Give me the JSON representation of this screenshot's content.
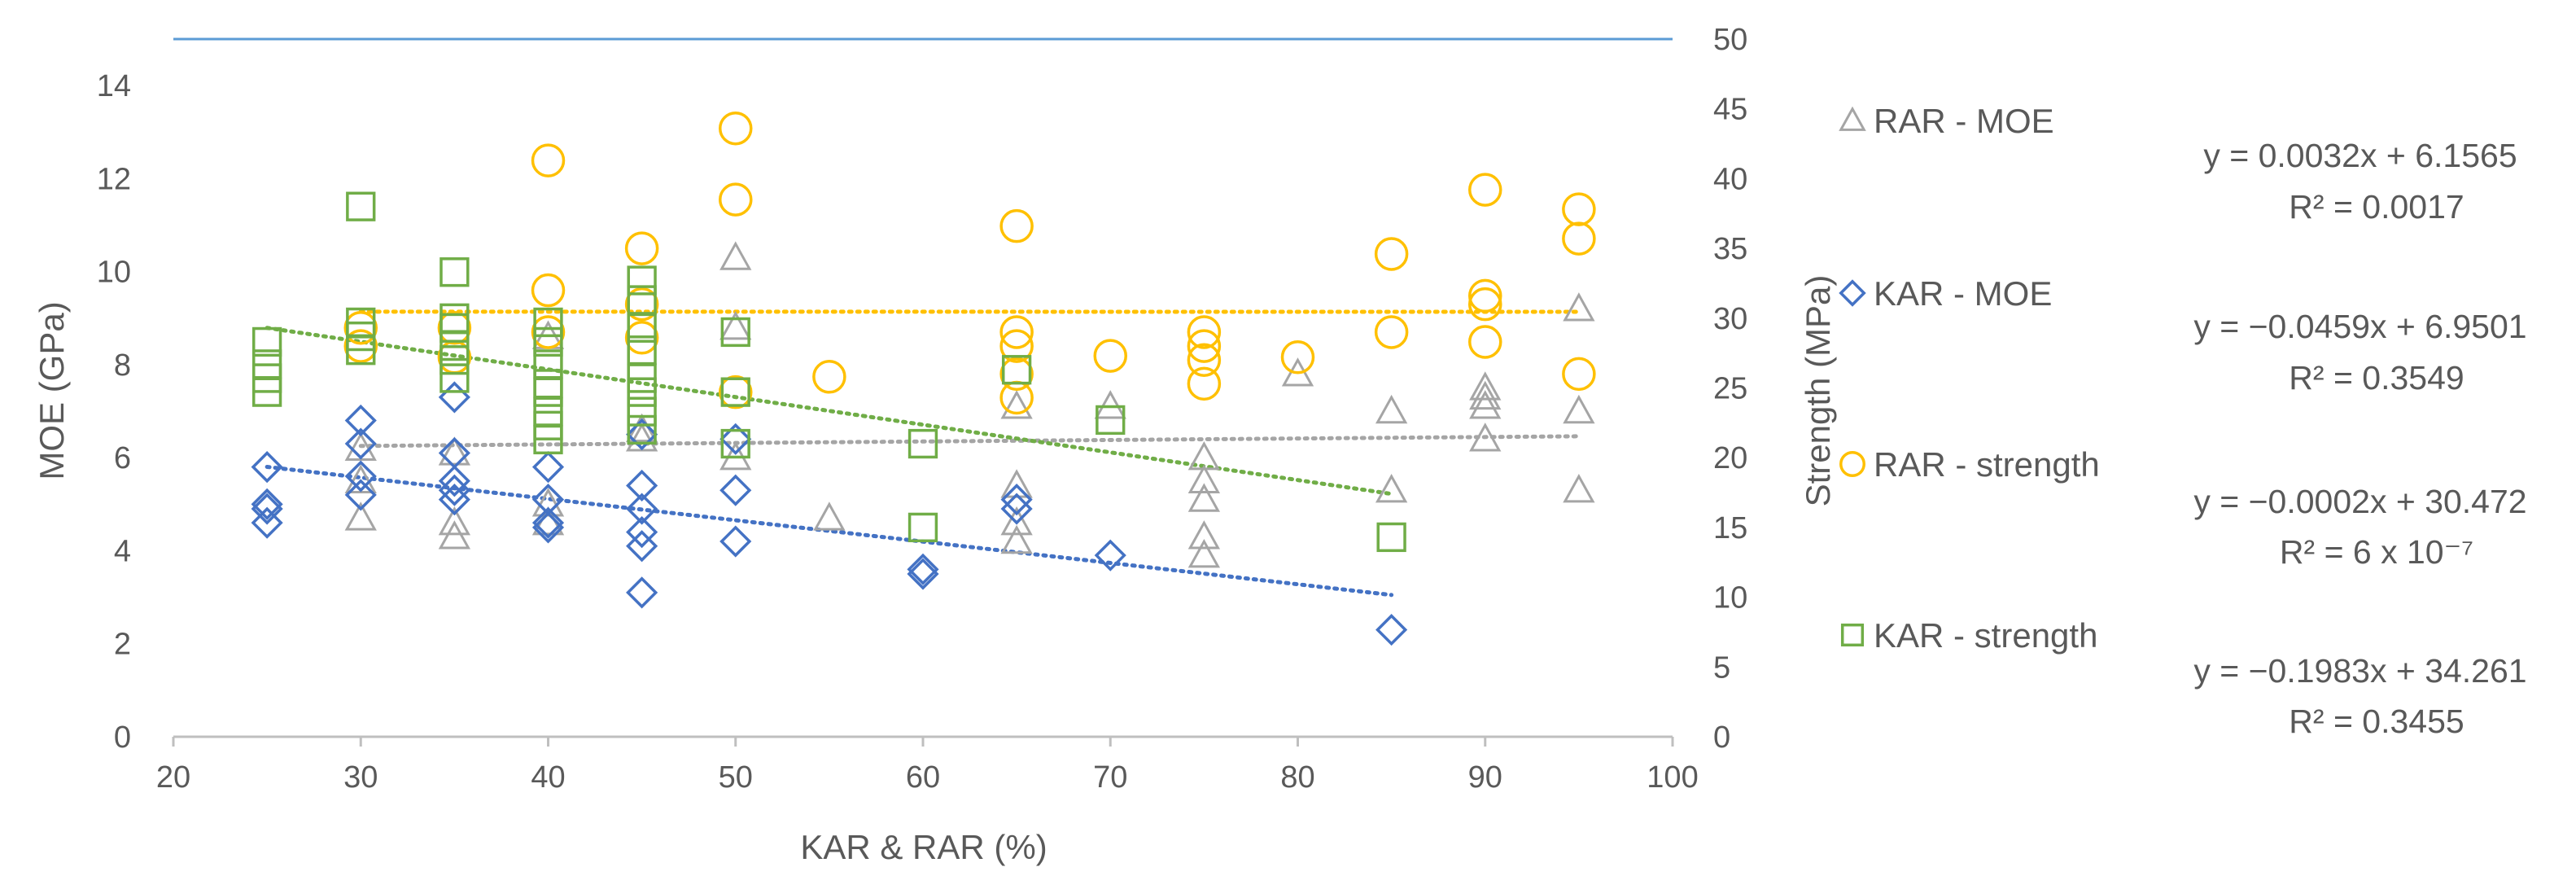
{
  "chart_data": {
    "type": "scatter",
    "title": "",
    "xlabel": "KAR & RAR (%)",
    "ylabel": "MOE (GPa)",
    "y2label": "Strength (MPa)",
    "xlim": [
      20,
      100
    ],
    "ylim": [
      0,
      15
    ],
    "y2lim": [
      0,
      50
    ],
    "x_ticks": [
      20,
      30,
      40,
      50,
      60,
      70,
      80,
      90,
      100
    ],
    "y_ticks": [
      0,
      2,
      4,
      6,
      8,
      10,
      12,
      14
    ],
    "y2_ticks": [
      0,
      5,
      10,
      15,
      20,
      25,
      30,
      35,
      40,
      45,
      50
    ],
    "grid": false,
    "legend_position": "right",
    "series": [
      {
        "name": "RAR - MOE",
        "axis": "left",
        "marker": "triangle",
        "color": "#a5a5a5",
        "points": [
          [
            30,
            4.7
          ],
          [
            30,
            5.5
          ],
          [
            30,
            6.2
          ],
          [
            35,
            4.3
          ],
          [
            35,
            4.6
          ],
          [
            35,
            6.1
          ],
          [
            40,
            4.6
          ],
          [
            40,
            5.0
          ],
          [
            40,
            8.6
          ],
          [
            45,
            6.4
          ],
          [
            45,
            6.6
          ],
          [
            50,
            6.0
          ],
          [
            50,
            10.3
          ],
          [
            50,
            8.8
          ],
          [
            55,
            4.7
          ],
          [
            65,
            4.2
          ],
          [
            65,
            4.6
          ],
          [
            65,
            5.4
          ],
          [
            65,
            7.1
          ],
          [
            70,
            7.1
          ],
          [
            75,
            3.9
          ],
          [
            75,
            4.3
          ],
          [
            75,
            5.1
          ],
          [
            75,
            5.5
          ],
          [
            75,
            6.0
          ],
          [
            80,
            7.8
          ],
          [
            85,
            5.3
          ],
          [
            85,
            7.0
          ],
          [
            90,
            6.4
          ],
          [
            90,
            7.1
          ],
          [
            90,
            7.3
          ],
          [
            90,
            7.5
          ],
          [
            95,
            5.3
          ],
          [
            95,
            7.0
          ],
          [
            95,
            9.2
          ]
        ],
        "trendline": {
          "slope": 0.0032,
          "intercept": 6.1565,
          "x_range": [
            30,
            95
          ],
          "equation": "y = 0.0032x + 6.1565",
          "r2": "R² = 0.0017"
        }
      },
      {
        "name": "KAR - MOE",
        "axis": "left",
        "marker": "diamond",
        "color": "#4472c4",
        "points": [
          [
            25,
            4.6
          ],
          [
            25,
            4.9
          ],
          [
            25,
            5.0
          ],
          [
            25,
            5.8
          ],
          [
            30,
            5.2
          ],
          [
            30,
            5.6
          ],
          [
            30,
            6.3
          ],
          [
            30,
            6.8
          ],
          [
            35,
            5.1
          ],
          [
            35,
            5.3
          ],
          [
            35,
            5.5
          ],
          [
            35,
            6.1
          ],
          [
            35,
            7.3
          ],
          [
            40,
            4.5
          ],
          [
            40,
            4.6
          ],
          [
            40,
            5.1
          ],
          [
            40,
            5.8
          ],
          [
            45,
            3.1
          ],
          [
            45,
            4.1
          ],
          [
            45,
            4.4
          ],
          [
            45,
            4.9
          ],
          [
            45,
            5.4
          ],
          [
            45,
            6.5
          ],
          [
            50,
            4.2
          ],
          [
            50,
            5.3
          ],
          [
            50,
            6.4
          ],
          [
            60,
            3.5
          ],
          [
            60,
            3.6
          ],
          [
            65,
            4.9
          ],
          [
            65,
            5.1
          ],
          [
            70,
            3.9
          ],
          [
            85,
            2.3
          ]
        ],
        "trendline": {
          "slope": -0.0459,
          "intercept": 6.9501,
          "x_range": [
            25,
            85
          ],
          "equation": "y = −0.0459x + 6.9501",
          "r2": "R² = 0.3549"
        }
      },
      {
        "name": "RAR - strength",
        "axis": "right",
        "marker": "circle",
        "color": "#ffc000",
        "points": [
          [
            30,
            28.0
          ],
          [
            30,
            29.3
          ],
          [
            35,
            27.2
          ],
          [
            35,
            29.3
          ],
          [
            40,
            29.0
          ],
          [
            40,
            32.0
          ],
          [
            40,
            41.3
          ],
          [
            45,
            28.6
          ],
          [
            45,
            31.0
          ],
          [
            45,
            35.0
          ],
          [
            50,
            24.7
          ],
          [
            50,
            38.5
          ],
          [
            50,
            43.6
          ],
          [
            55,
            25.8
          ],
          [
            65,
            24.3
          ],
          [
            65,
            26.0
          ],
          [
            65,
            28.0
          ],
          [
            65,
            29.0
          ],
          [
            65,
            36.6
          ],
          [
            70,
            27.3
          ],
          [
            75,
            25.3
          ],
          [
            75,
            27.0
          ],
          [
            75,
            28.0
          ],
          [
            75,
            29.0
          ],
          [
            80,
            27.2
          ],
          [
            85,
            29.0
          ],
          [
            85,
            34.6
          ],
          [
            90,
            28.3
          ],
          [
            90,
            31.0
          ],
          [
            90,
            31.6
          ],
          [
            90,
            39.2
          ],
          [
            95,
            26.0
          ],
          [
            95,
            35.7
          ],
          [
            95,
            37.8
          ]
        ],
        "trendline": {
          "slope": -0.0002,
          "intercept": 30.472,
          "x_range": [
            30,
            95
          ],
          "equation": "y = −0.0002x + 30.472",
          "r2": "R² = 6 x 10⁻⁷"
        }
      },
      {
        "name": "KAR - strength",
        "axis": "right",
        "marker": "square",
        "color": "#70ad47",
        "points": [
          [
            25,
            24.7
          ],
          [
            25,
            25.7
          ],
          [
            25,
            26.7
          ],
          [
            25,
            28.3
          ],
          [
            30,
            27.7
          ],
          [
            30,
            28.7
          ],
          [
            30,
            29.7
          ],
          [
            30,
            38.0
          ],
          [
            35,
            25.7
          ],
          [
            35,
            27.0
          ],
          [
            35,
            28.0
          ],
          [
            35,
            29.3
          ],
          [
            35,
            30.0
          ],
          [
            35,
            33.3
          ],
          [
            40,
            21.3
          ],
          [
            40,
            22.3
          ],
          [
            40,
            23.3
          ],
          [
            40,
            24.7
          ],
          [
            40,
            25.3
          ],
          [
            40,
            26.7
          ],
          [
            40,
            28.3
          ],
          [
            40,
            29.7
          ],
          [
            45,
            22.0
          ],
          [
            45,
            23.3
          ],
          [
            45,
            24.7
          ],
          [
            45,
            25.7
          ],
          [
            45,
            27.7
          ],
          [
            45,
            29.3
          ],
          [
            45,
            31.3
          ],
          [
            45,
            32.7
          ],
          [
            50,
            21.0
          ],
          [
            50,
            24.7
          ],
          [
            50,
            29.0
          ],
          [
            60,
            21.0
          ],
          [
            60,
            15.0
          ],
          [
            65,
            26.3
          ],
          [
            70,
            22.7
          ],
          [
            85,
            14.3
          ]
        ],
        "trendline": {
          "slope": -0.1983,
          "intercept": 34.261,
          "x_range": [
            25,
            85
          ],
          "equation": "y = −0.1983x + 34.261",
          "r2": "R² = 0.3455"
        }
      }
    ]
  }
}
